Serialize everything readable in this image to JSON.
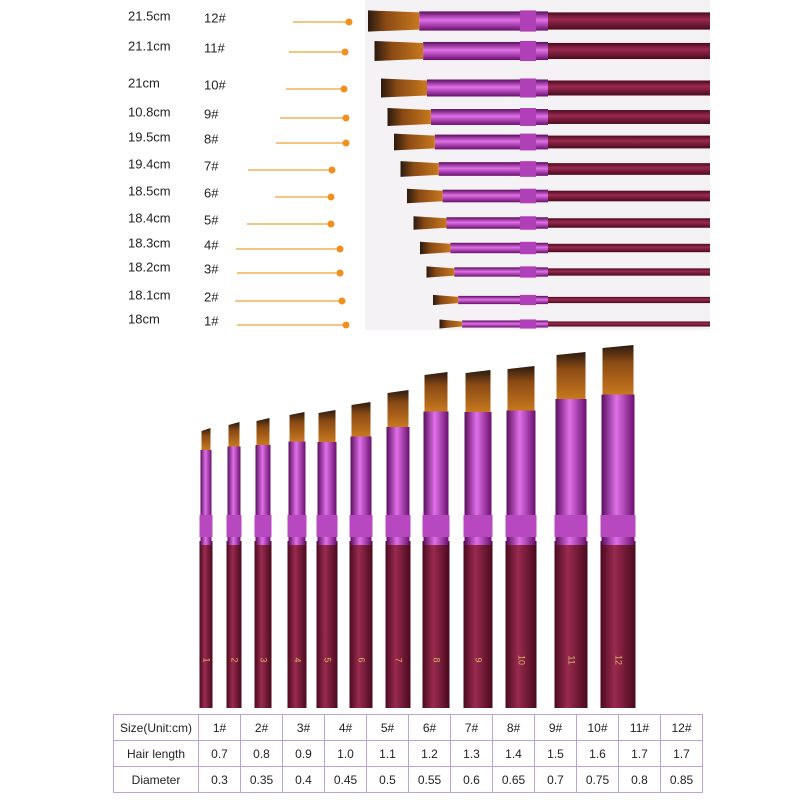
{
  "size_chart": {
    "rows": [
      {
        "length": "21.5cm",
        "size": "12#"
      },
      {
        "length": "21.1cm",
        "size": "11#"
      },
      {
        "length": "21cm",
        "size": "10#"
      },
      {
        "length": "10.8cm",
        "size": "9#"
      },
      {
        "length": "19.5cm",
        "size": "8#"
      },
      {
        "length": "19.4cm",
        "size": "7#"
      },
      {
        "length": "18.5cm",
        "size": "6#"
      },
      {
        "length": "18.4cm",
        "size": "5#"
      },
      {
        "length": "18.3cm",
        "size": "4#"
      },
      {
        "length": "18.2cm",
        "size": "3#"
      },
      {
        "length": "18.1cm",
        "size": "2#"
      },
      {
        "length": "18cm",
        "size": "1#"
      }
    ]
  },
  "handle_numbers": [
    "1",
    "2",
    "3",
    "4",
    "5",
    "6",
    "7",
    "8",
    "9",
    "10",
    "11",
    "12"
  ],
  "table": {
    "rows": [
      [
        "Size(Unit:cm)",
        "1#",
        "2#",
        "3#",
        "4#",
        "5#",
        "6#",
        "7#",
        "8#",
        "9#",
        "10#",
        "11#",
        "12#"
      ],
      [
        "Hair length",
        "0.7",
        "0.8",
        "0.9",
        "1.0",
        "1.1",
        "1.2",
        "1.3",
        "1.4",
        "1.5",
        "1.6",
        "1.7",
        "1.7"
      ],
      [
        "Diameter",
        "0.3",
        "0.35",
        "0.4",
        "0.45",
        "0.5",
        "0.55",
        "0.6",
        "0.65",
        "0.7",
        "0.75",
        "0.8",
        "0.85"
      ]
    ]
  }
}
